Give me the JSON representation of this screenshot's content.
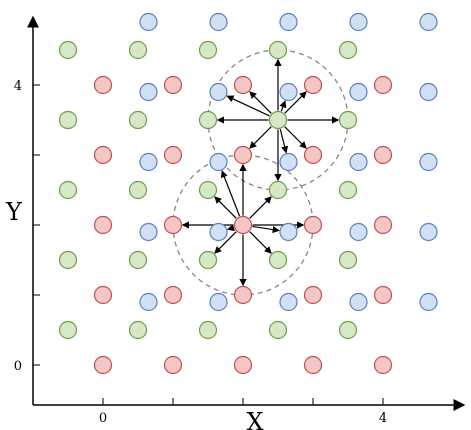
{
  "axes": {
    "x_title": "X",
    "y_title": "Y",
    "x_ticks": [
      {
        "value": 0,
        "label": "0"
      },
      {
        "value": 1,
        "label": ""
      },
      {
        "value": 2,
        "label": ""
      },
      {
        "value": 3,
        "label": ""
      },
      {
        "value": 4,
        "label": "4"
      }
    ],
    "y_ticks": [
      {
        "value": 0,
        "label": "0"
      },
      {
        "value": 1,
        "label": ""
      },
      {
        "value": 2,
        "label": ""
      },
      {
        "value": 3,
        "label": ""
      },
      {
        "value": 4,
        "label": "4"
      }
    ]
  },
  "colors": {
    "red_fill": "#f4c7c7",
    "red_stroke": "#c0504d",
    "green_fill": "#d7e8c6",
    "green_stroke": "#6a9f4a",
    "blue_fill": "#d2e0f3",
    "blue_stroke": "#5a80bf",
    "dashed_circle": "#888888",
    "arrow": "#000000"
  },
  "lattices": {
    "red": {
      "x_from": 0,
      "x_to": 4,
      "y_from": 0,
      "y_to": 4,
      "x_offset": 0,
      "y_offset": 0
    },
    "green": {
      "x_from": -0.5,
      "x_to": 3.5,
      "y_from": 0.5,
      "y_to": 4.5,
      "x_offset": 0,
      "y_offset": 0
    },
    "blue": {
      "x_from": 0.5,
      "x_to": 4.5,
      "y_from": 1,
      "y_to": 5,
      "x_offset": 0.15,
      "y_offset": -0.1
    }
  },
  "neighborhoods": [
    {
      "center_type": "red",
      "center": [
        2,
        2
      ],
      "radius": 1
    },
    {
      "center_type": "green",
      "center": [
        2.5,
        3.5
      ],
      "radius": 1
    }
  ]
}
